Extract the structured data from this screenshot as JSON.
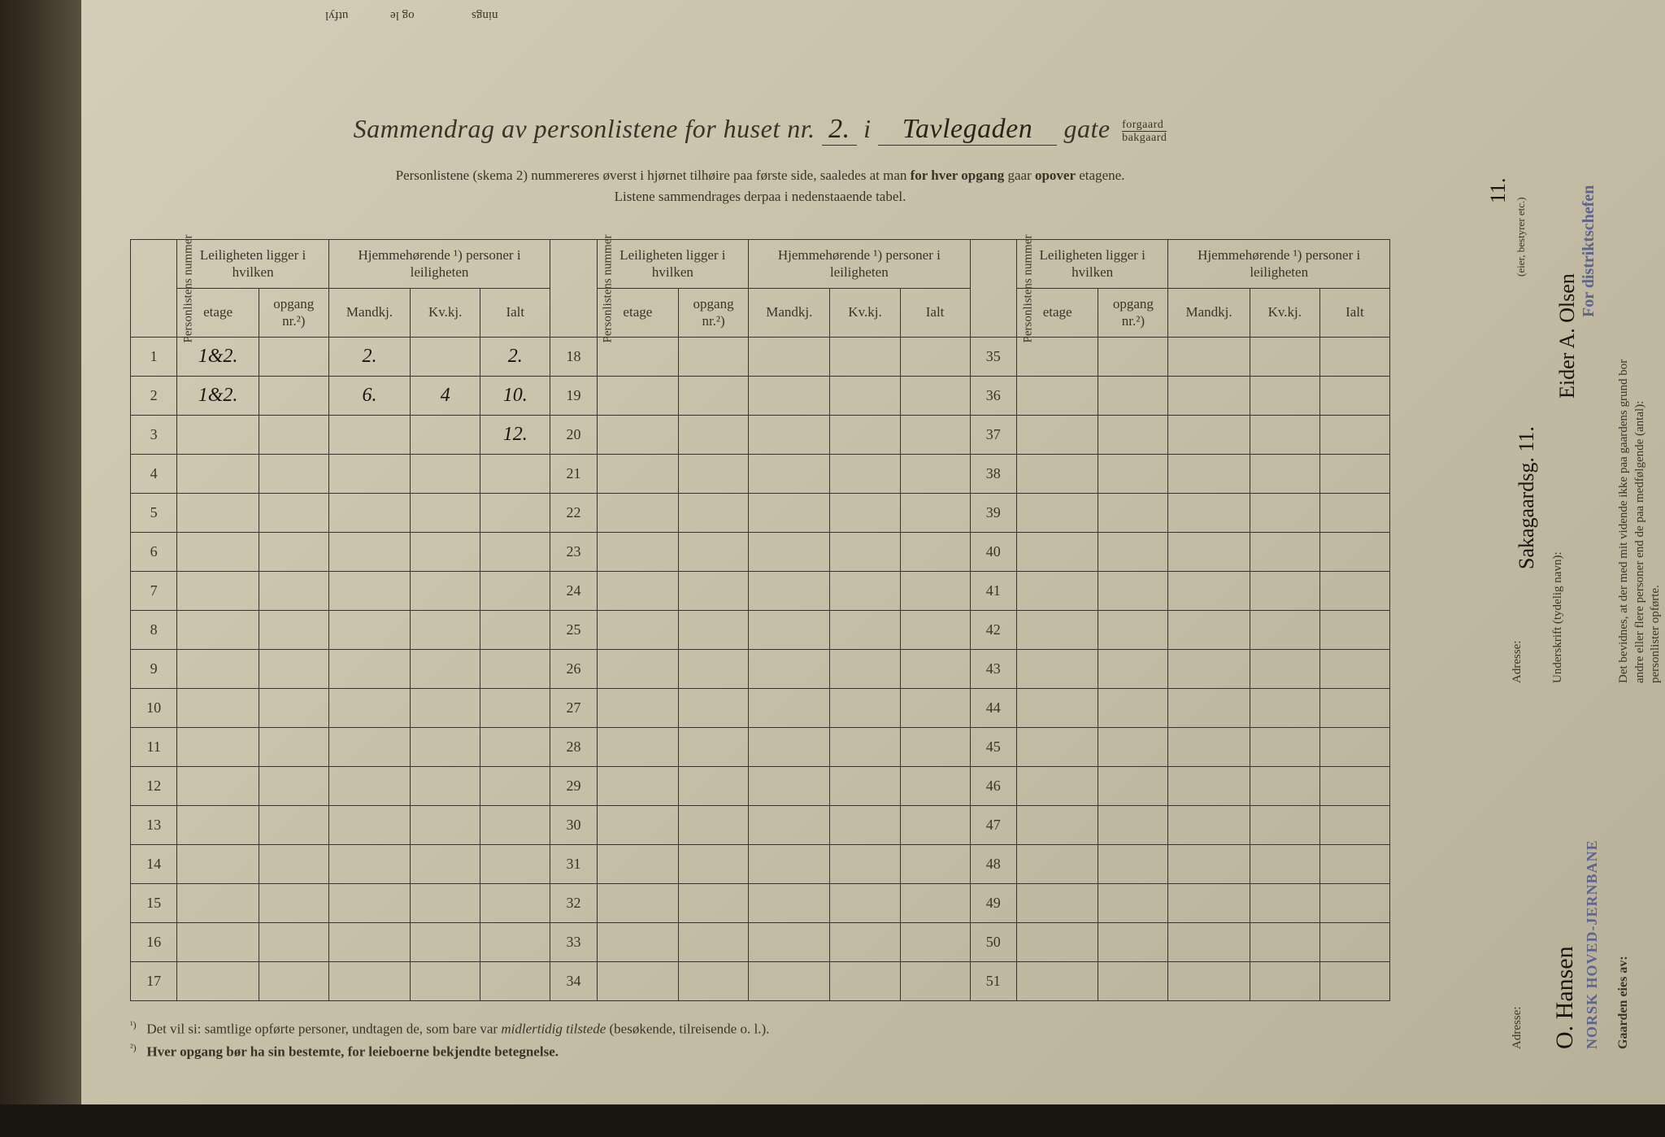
{
  "colors": {
    "paper": "#c8c0a8",
    "ink": "#3a3428",
    "handwriting": "#1a1410",
    "stamp_blue": "#5a6590",
    "dark_bg": "#1a1612"
  },
  "title": {
    "prefix": "Sammendrag av personlistene for huset nr.",
    "house_number": "2.",
    "middle": "i",
    "street_handwritten": "Tavlegaden",
    "suffix": "gate",
    "stack_top": "forgaard",
    "stack_bottom": "bakgaard"
  },
  "instructions": {
    "line1_a": "Personlistene (skema 2) nummereres øverst i hjørnet tilhøire paa første side, saaledes at man ",
    "line1_bold1": "for hver opgang",
    "line1_b": " gaar ",
    "line1_bold2": "opover",
    "line1_c": " etagene.",
    "line2": "Listene sammendrages derpaa i nedenstaaende tabel."
  },
  "headers": {
    "personlistens_nummer": "Personlistens nummer",
    "leiligheten_ligger": "Leiligheten ligger i hvilken",
    "hjemmehorende": "Hjemmehørende ¹) personer i leiligheten",
    "etage": "etage",
    "opgang": "opgang nr.²)",
    "mandkj": "Mandkj.",
    "kvkj": "Kv.kj.",
    "ialt": "Ialt"
  },
  "rows_block1": [
    {
      "num": "1",
      "etage": "1&2.",
      "opgang": "",
      "mandkj": "2.",
      "kvkj": "",
      "ialt": "2."
    },
    {
      "num": "2",
      "etage": "1&2.",
      "opgang": "",
      "mandkj": "6.",
      "kvkj": "4",
      "ialt": "10."
    },
    {
      "num": "3",
      "etage": "",
      "opgang": "",
      "mandkj": "",
      "kvkj": "",
      "ialt": "12."
    },
    {
      "num": "4",
      "etage": "",
      "opgang": "",
      "mandkj": "",
      "kvkj": "",
      "ialt": ""
    },
    {
      "num": "5",
      "etage": "",
      "opgang": "",
      "mandkj": "",
      "kvkj": "",
      "ialt": ""
    },
    {
      "num": "6",
      "etage": "",
      "opgang": "",
      "mandkj": "",
      "kvkj": "",
      "ialt": ""
    },
    {
      "num": "7",
      "etage": "",
      "opgang": "",
      "mandkj": "",
      "kvkj": "",
      "ialt": ""
    },
    {
      "num": "8",
      "etage": "",
      "opgang": "",
      "mandkj": "",
      "kvkj": "",
      "ialt": ""
    },
    {
      "num": "9",
      "etage": "",
      "opgang": "",
      "mandkj": "",
      "kvkj": "",
      "ialt": ""
    },
    {
      "num": "10",
      "etage": "",
      "opgang": "",
      "mandkj": "",
      "kvkj": "",
      "ialt": ""
    },
    {
      "num": "11",
      "etage": "",
      "opgang": "",
      "mandkj": "",
      "kvkj": "",
      "ialt": ""
    },
    {
      "num": "12",
      "etage": "",
      "opgang": "",
      "mandkj": "",
      "kvkj": "",
      "ialt": ""
    },
    {
      "num": "13",
      "etage": "",
      "opgang": "",
      "mandkj": "",
      "kvkj": "",
      "ialt": ""
    },
    {
      "num": "14",
      "etage": "",
      "opgang": "",
      "mandkj": "",
      "kvkj": "",
      "ialt": ""
    },
    {
      "num": "15",
      "etage": "",
      "opgang": "",
      "mandkj": "",
      "kvkj": "",
      "ialt": ""
    },
    {
      "num": "16",
      "etage": "",
      "opgang": "",
      "mandkj": "",
      "kvkj": "",
      "ialt": ""
    },
    {
      "num": "17",
      "etage": "",
      "opgang": "",
      "mandkj": "",
      "kvkj": "",
      "ialt": ""
    }
  ],
  "rows_block2_start": 18,
  "rows_block2_end": 34,
  "rows_block3_start": 35,
  "rows_block3_end": 51,
  "footnotes": {
    "note1_num": "¹)",
    "note1": "Det vil si: samtlige opførte personer, undtagen de, som bare var ",
    "note1_italic": "midlertidig tilstede",
    "note1_b": " (besøkende, tilreisende o. l.).",
    "note2_num": "²)",
    "note2_bold": "Hver opgang bør ha sin bestemte, for leieboerne bekjendte betegnelse."
  },
  "sidebar": {
    "bevidnes_line1": "Det bevidnes, at der med mit vidende ikke paa gaardens grund bor",
    "bevidnes_line2": "andre eller flere personer end de paa medfølgende (antal):",
    "bevidnes_line3": "personlister opførte.",
    "stamp_distrikt": "For distriktschefen",
    "underskrift_label": "Underskrift (tydelig navn):",
    "signature": "Eider A. Olsen",
    "adresse_label": "Adresse:",
    "adresse_value": "Sakagaardsg. 11.",
    "eier_note": "(eier, bestyrer etc.)",
    "gaarden_eies": "Gaarden eies av:",
    "stamp_jernbane": "NORSK HOVED-JERNBANE",
    "signature2": "O. Hansen",
    "adresse_label2": "Adresse:",
    "date_fragment": "11."
  },
  "top_fragments": {
    "f1": "utfyl",
    "f2": "og le",
    "f3": "nings"
  }
}
